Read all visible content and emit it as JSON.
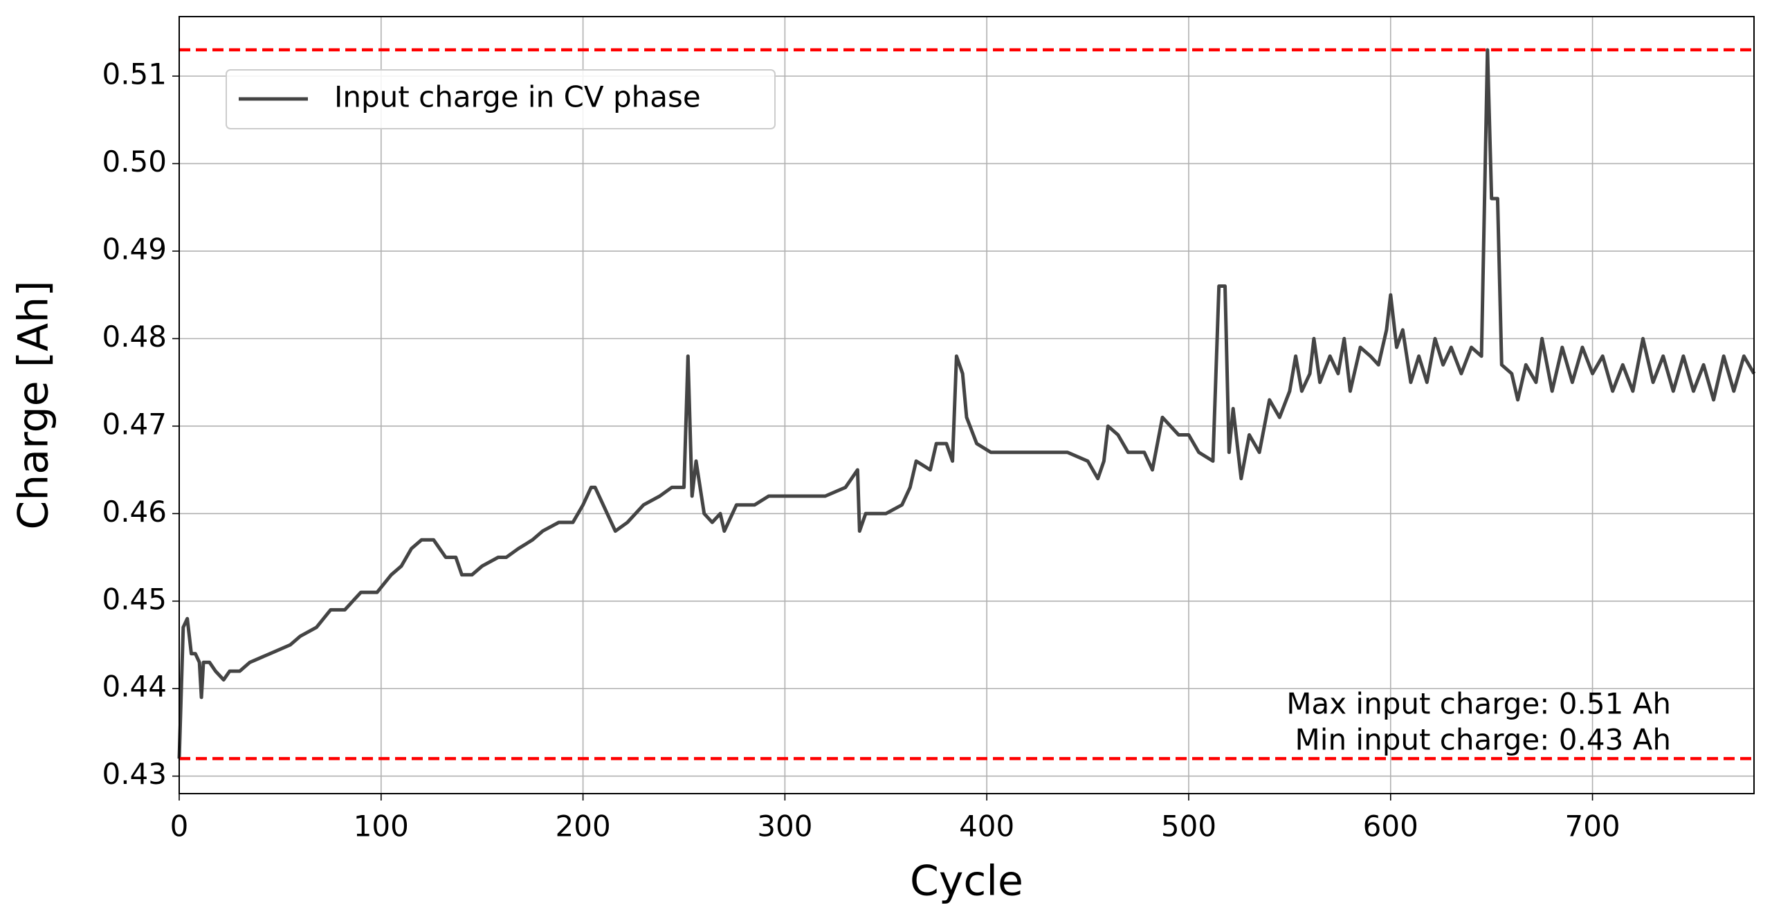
{
  "chart_data": {
    "type": "line",
    "xlabel": "Cycle",
    "ylabel": "Charge [Ah]",
    "xlim": [
      0,
      780
    ],
    "ylim": [
      0.428,
      0.5168
    ],
    "xticks": [
      0,
      100,
      200,
      300,
      400,
      500,
      600,
      700
    ],
    "yticks": [
      0.43,
      0.44,
      0.45,
      0.46,
      0.47,
      0.48,
      0.49,
      {
        "value": 0.5,
        "label": "0.50"
      },
      0.51
    ],
    "grid": true,
    "legend": "upper left",
    "x": [
      0,
      2,
      4,
      6,
      8,
      10,
      11,
      12,
      15,
      18,
      22,
      25,
      30,
      35,
      45,
      55,
      60,
      68,
      75,
      82,
      90,
      98,
      105,
      110,
      115,
      120,
      126,
      132,
      137,
      140,
      145,
      150,
      158,
      162,
      168,
      175,
      180,
      188,
      195,
      200,
      204,
      206,
      212,
      216,
      222,
      230,
      238,
      244,
      250,
      252,
      254,
      256,
      260,
      264,
      268,
      270,
      276,
      285,
      292,
      305,
      320,
      330,
      336,
      337,
      340,
      350,
      358,
      362,
      365,
      372,
      375,
      380,
      383,
      385,
      388,
      390,
      395,
      402,
      420,
      440,
      450,
      455,
      458,
      460,
      465,
      470,
      478,
      482,
      487,
      495,
      500,
      505,
      512,
      515,
      518,
      520,
      522,
      526,
      530,
      535,
      540,
      545,
      550,
      553,
      556,
      560,
      562,
      565,
      570,
      574,
      577,
      580,
      585,
      590,
      594,
      598,
      600,
      603,
      606,
      610,
      614,
      618,
      622,
      626,
      630,
      635,
      640,
      645,
      648,
      650,
      653,
      655,
      660,
      663,
      667,
      672,
      675,
      680,
      685,
      690,
      695,
      700,
      705,
      710,
      715,
      720,
      725,
      730,
      735,
      740,
      745,
      750,
      755,
      760,
      765,
      770,
      775,
      780
    ],
    "series": [
      {
        "name": "Input charge in CV phase",
        "color": "#444444",
        "values": [
          0.432,
          0.447,
          0.448,
          0.444,
          0.444,
          0.443,
          0.439,
          0.443,
          0.443,
          0.442,
          0.441,
          0.442,
          0.442,
          0.443,
          0.444,
          0.445,
          0.446,
          0.447,
          0.449,
          0.449,
          0.451,
          0.451,
          0.453,
          0.454,
          0.456,
          0.457,
          0.457,
          0.455,
          0.455,
          0.453,
          0.453,
          0.454,
          0.455,
          0.455,
          0.456,
          0.457,
          0.458,
          0.459,
          0.459,
          0.461,
          0.463,
          0.463,
          0.46,
          0.458,
          0.459,
          0.461,
          0.462,
          0.463,
          0.463,
          0.478,
          0.462,
          0.466,
          0.46,
          0.459,
          0.46,
          0.458,
          0.461,
          0.461,
          0.462,
          0.462,
          0.462,
          0.463,
          0.465,
          0.458,
          0.46,
          0.46,
          0.461,
          0.463,
          0.466,
          0.465,
          0.468,
          0.468,
          0.466,
          0.478,
          0.476,
          0.471,
          0.468,
          0.467,
          0.467,
          0.467,
          0.466,
          0.464,
          0.466,
          0.47,
          0.469,
          0.467,
          0.467,
          0.465,
          0.471,
          0.469,
          0.469,
          0.467,
          0.466,
          0.486,
          0.486,
          0.467,
          0.472,
          0.464,
          0.469,
          0.467,
          0.473,
          0.471,
          0.474,
          0.478,
          0.474,
          0.476,
          0.48,
          0.475,
          0.478,
          0.476,
          0.48,
          0.474,
          0.479,
          0.478,
          0.477,
          0.481,
          0.485,
          0.479,
          0.481,
          0.475,
          0.478,
          0.475,
          0.48,
          0.477,
          0.479,
          0.476,
          0.479,
          0.478,
          0.513,
          0.496,
          0.496,
          0.477,
          0.476,
          0.473,
          0.477,
          0.475,
          0.48,
          0.474,
          0.479,
          0.475,
          0.479,
          0.476,
          0.478,
          0.474,
          0.477,
          0.474,
          0.48,
          0.475,
          0.478,
          0.474,
          0.478,
          0.474,
          0.477,
          0.473,
          0.478,
          0.474,
          0.478,
          0.476
        ]
      }
    ],
    "hlines": [
      {
        "value": 0.513,
        "color": "#ff0000"
      },
      {
        "value": 0.432,
        "color": "#ff0000"
      }
    ],
    "annotations": [
      "Max input charge: 0.51 Ah",
      "Min input charge: 0.43 Ah"
    ]
  }
}
